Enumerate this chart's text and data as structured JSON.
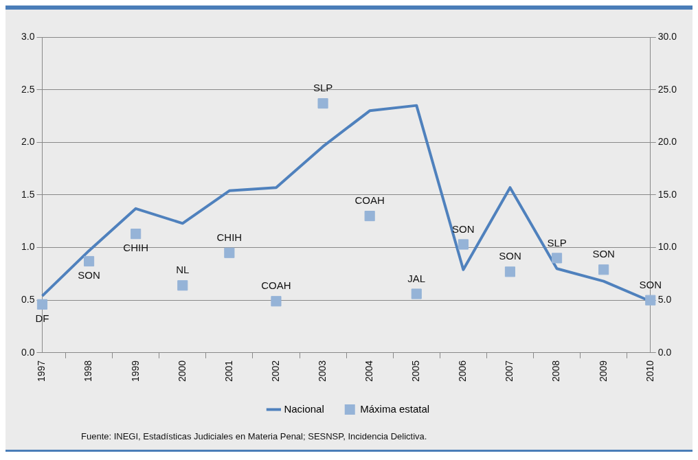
{
  "chart_data": {
    "type": "line",
    "categories": [
      "1997",
      "1998",
      "1999",
      "2000",
      "2001",
      "2002",
      "2003",
      "2004",
      "2005",
      "2006",
      "2007",
      "2008",
      "2009",
      "2010"
    ],
    "series": [
      {
        "name": "Nacional",
        "type": "line",
        "color": "#4f81bd",
        "marker": "none",
        "values": [
          0.54,
          0.97,
          1.37,
          1.23,
          1.54,
          1.57,
          1.96,
          2.3,
          2.35,
          0.79,
          1.57,
          0.8,
          0.68,
          0.49
        ]
      },
      {
        "name": "Máxima estatal",
        "type": "scatter",
        "axis": "y2",
        "color": "#95b3d7",
        "marker": "square",
        "values": [
          4.6,
          8.7,
          11.3,
          6.4,
          9.5,
          4.9,
          23.7,
          13.0,
          5.6,
          10.3,
          7.7,
          9.0,
          7.9,
          5.0
        ],
        "value_labels": [
          "DF",
          "SON",
          "CHIH",
          "NL",
          "CHIH",
          "COAH",
          "SLP",
          "COAH",
          "JAL",
          "SON",
          "SON",
          "SLP",
          "SON",
          "SON"
        ]
      }
    ],
    "ylim": [
      0,
      3
    ],
    "yticks": [
      {
        "value": 0,
        "label": "0.0"
      },
      {
        "value": 0.5,
        "label": "0.5"
      },
      {
        "value": 1,
        "label": "1.0"
      },
      {
        "value": 1.5,
        "label": "1.5"
      },
      {
        "value": 2,
        "label": "2.0"
      },
      {
        "value": 2.5,
        "label": "2.5"
      },
      {
        "value": 3,
        "label": "3.0"
      }
    ],
    "y2lim": [
      0,
      30
    ],
    "y2ticks": [
      {
        "value": 0,
        "label": "0.0"
      },
      {
        "value": 5,
        "label": "5.0"
      },
      {
        "value": 10,
        "label": "10.0"
      },
      {
        "value": 15,
        "label": "15.0"
      },
      {
        "value": 20,
        "label": "20.0"
      },
      {
        "value": 25,
        "label": "25.0"
      },
      {
        "value": 30,
        "label": "30.0"
      }
    ],
    "grid": "y",
    "legend": "bottom",
    "annotations": [
      "Fuente: INEGI, Estadísticas Judiciales en Materia Penal; SESNSP, Incidencia Delictiva."
    ]
  }
}
